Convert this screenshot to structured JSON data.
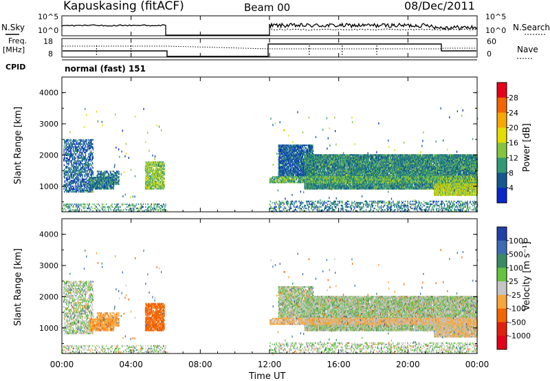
{
  "header": {
    "station": "Kapuskasing (fitACF)",
    "beam": "Beam 00",
    "date": "08/Dec/2011"
  },
  "labels": {
    "n_sky": "N.Sky",
    "n_search": "N.Search",
    "freq": "Freq.",
    "freq_unit": "[MHz]",
    "nave": "Nave",
    "cpid": "CPID",
    "cpid_value": "normal (fast) 151",
    "ylabel": "Slant Range [km]",
    "xlabel": "Time UT",
    "power_cb_label": "Power [dB]",
    "velocity_cb_label": "Velocity [m s⁻¹]"
  },
  "noise_panel": {
    "left_ticks": [
      "10^5",
      "10^0"
    ],
    "right_ticks": [
      "10^5",
      "10^0"
    ]
  },
  "freq_panel": {
    "left_ticks": [
      "18",
      "8"
    ],
    "right_ticks": [
      "60",
      "0"
    ]
  },
  "time_axis": {
    "ticks": [
      "00:00",
      "04:00",
      "08:00",
      "12:00",
      "16:00",
      "20:00",
      "00:00"
    ],
    "range_hours": [
      0,
      24
    ]
  },
  "range_axis": {
    "ticks": [
      "1000",
      "2000",
      "3000",
      "4000"
    ],
    "range_km": [
      180,
      4500
    ]
  },
  "power_colorbar": {
    "labels": [
      "28",
      "24",
      "20",
      "16",
      "12",
      "8",
      "4"
    ],
    "colors": [
      "#e8001a",
      "#f46500",
      "#f7a800",
      "#e5dc00",
      "#86c440",
      "#2f9a75",
      "#13588f",
      "#0727c8"
    ]
  },
  "velocity_colorbar": {
    "labels": [
      "1000",
      "500",
      "100",
      "25",
      "-25",
      "-100",
      "-500",
      "-1000"
    ],
    "colors": [
      "#2140a8",
      "#3c6cb3",
      "#3a8a63",
      "#66c340",
      "#c5c5c5",
      "#f7a63a",
      "#f46500",
      "#e02010",
      "#e8001a"
    ]
  },
  "chart_data": {
    "type": "heatmap",
    "x_unit": "hours UT",
    "y_unit": "km",
    "scatter_regions": [
      {
        "t_start": 0.1,
        "t_end": 1.8,
        "r_min": 800,
        "r_max": 2500,
        "density": 0.35,
        "power_mean": 6,
        "velocity_mean": 0
      },
      {
        "t_start": 1.6,
        "t_end": 3.0,
        "r_min": 900,
        "r_max": 1300,
        "density": 0.55,
        "power_mean": 8,
        "velocity_mean": -80
      },
      {
        "t_start": 2.0,
        "t_end": 3.3,
        "r_min": 1050,
        "r_max": 1500,
        "density": 0.4,
        "power_mean": 8,
        "velocity_mean": -80
      },
      {
        "t_start": 4.8,
        "t_end": 5.9,
        "r_min": 900,
        "r_max": 1800,
        "density": 0.5,
        "power_mean": 14,
        "velocity_mean": -300
      },
      {
        "t_start": 12.5,
        "t_end": 14.5,
        "r_min": 1300,
        "r_max": 2300,
        "density": 0.6,
        "power_mean": 6,
        "velocity_mean": 0
      },
      {
        "t_start": 14.0,
        "t_end": 24.0,
        "r_min": 900,
        "r_max": 2000,
        "density": 0.75,
        "power_mean": 9,
        "velocity_mean": 0
      },
      {
        "t_start": 21.5,
        "t_end": 24.0,
        "r_min": 700,
        "r_max": 1300,
        "density": 0.8,
        "power_mean": 16,
        "velocity_mean": -20
      },
      {
        "t_start": 12.0,
        "t_end": 24.0,
        "r_min": 1100,
        "r_max": 1300,
        "density": 0.6,
        "power_mean": 12,
        "velocity_mean": -30
      },
      {
        "t_start": 0.0,
        "t_end": 6.0,
        "r_min": 180,
        "r_max": 450,
        "density": 0.18,
        "power_mean": 10,
        "velocity_mean": 0
      },
      {
        "t_start": 12.0,
        "t_end": 24.0,
        "r_min": 180,
        "r_max": 500,
        "density": 0.2,
        "power_mean": 8,
        "velocity_mean": 0
      }
    ],
    "gaps_hours": [
      [
        6.0,
        12.0
      ]
    ]
  }
}
